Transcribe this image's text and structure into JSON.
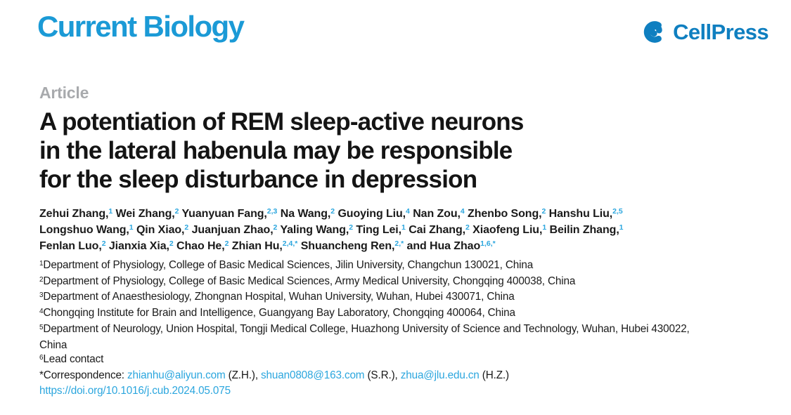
{
  "header": {
    "journal_name": "Current Biology",
    "publisher_name": "CellPress"
  },
  "colors": {
    "journal_blue": "#1b9ad6",
    "publisher_blue": "#0f7fc0",
    "link_blue": "#2ba6de",
    "kicker_gray": "#a8aaad",
    "text_black": "#1a1a1a"
  },
  "article": {
    "kicker": "Article",
    "title_lines": [
      "A potentiation of REM sleep-active neurons",
      "in the lateral habenula may be responsible",
      "for the sleep disturbance in depression"
    ]
  },
  "author_lines": [
    [
      {
        "t": "Zehui Zhang,",
        "s": "1"
      },
      {
        "t": "Wei Zhang,",
        "s": "2"
      },
      {
        "t": "Yuanyuan Fang,",
        "s": "2,3"
      },
      {
        "t": "Na Wang,",
        "s": "2"
      },
      {
        "t": "Guoying Liu,",
        "s": "4"
      },
      {
        "t": "Nan Zou,",
        "s": "4"
      },
      {
        "t": "Zhenbo Song,",
        "s": "2"
      },
      {
        "t": "Hanshu Liu,",
        "s": "2,5"
      }
    ],
    [
      {
        "t": "Longshuo Wang,",
        "s": "1"
      },
      {
        "t": "Qin Xiao,",
        "s": "2"
      },
      {
        "t": "Juanjuan Zhao,",
        "s": "2"
      },
      {
        "t": "Yaling Wang,",
        "s": "2"
      },
      {
        "t": "Ting Lei,",
        "s": "1"
      },
      {
        "t": "Cai Zhang,",
        "s": "2"
      },
      {
        "t": "Xiaofeng Liu,",
        "s": "1"
      },
      {
        "t": "Beilin Zhang,",
        "s": "1"
      }
    ],
    [
      {
        "t": "Fenlan Luo,",
        "s": "2"
      },
      {
        "t": "Jianxia Xia,",
        "s": "2"
      },
      {
        "t": "Chao He,",
        "s": "2"
      },
      {
        "t": "Zhian Hu,",
        "s": "2,4,*"
      },
      {
        "t": "Shuancheng Ren,",
        "s": "2,*"
      },
      {
        "t": "and Hua Zhao",
        "s": "1,6,*"
      }
    ]
  ],
  "affiliations": [
    {
      "sup": "1",
      "lines": [
        "Department of Physiology, College of Basic Medical Sciences, Jilin University, Changchun 130021, China"
      ]
    },
    {
      "sup": "2",
      "lines": [
        "Department of Physiology, College of Basic Medical Sciences, Army Medical University, Chongqing 400038, China"
      ]
    },
    {
      "sup": "3",
      "lines": [
        "Department of Anaesthesiology, Zhongnan Hospital, Wuhan University, Wuhan, Hubei 430071, China"
      ]
    },
    {
      "sup": "4",
      "lines": [
        "Chongqing Institute for Brain and Intelligence, Guangyang Bay Laboratory, Chongqing 400064, China"
      ]
    },
    {
      "sup": "5",
      "lines": [
        "Department of Neurology, Union Hospital, Tongji Medical College, Huazhong University of Science and Technology, Wuhan, Hubei 430022,",
        "China"
      ]
    },
    {
      "sup": "6",
      "lines": [
        "Lead contact"
      ]
    }
  ],
  "correspondence": {
    "prefix": "*Correspondence: ",
    "contacts": [
      {
        "email": "zhianhu@aliyun.com",
        "after": " (Z.H.), "
      },
      {
        "email": "shuan0808@163.com",
        "after": " (S.R.), "
      },
      {
        "email": "zhua@jlu.edu.cn",
        "after": " (H.Z.)"
      }
    ]
  },
  "doi": "https://doi.org/10.1016/j.cub.2024.05.075"
}
